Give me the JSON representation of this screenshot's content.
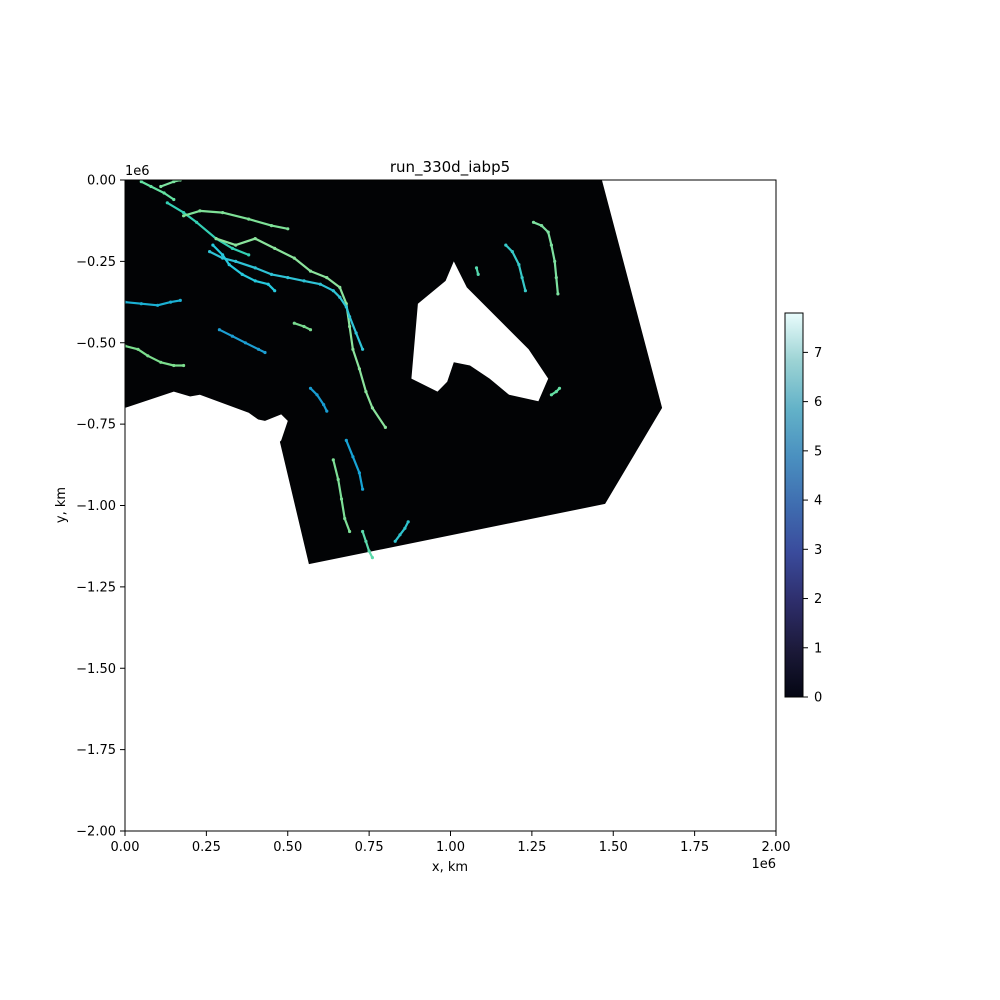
{
  "chart_data": {
    "type": "scatter",
    "title": "run_330d_iabp5",
    "xlabel": "x, km",
    "ylabel": "y, km",
    "x_offset_label": "1e6",
    "y_offset_label": "1e6",
    "xlim": [
      0.0,
      2000000.0
    ],
    "ylim": [
      -2000000.0,
      0.0
    ],
    "x_ticks": [
      0.0,
      250000.0,
      500000.0,
      750000.0,
      1000000.0,
      1250000.0,
      1500000.0,
      1750000.0,
      2000000.0
    ],
    "x_tick_labels": [
      "0.00",
      "0.25",
      "0.50",
      "0.75",
      "1.00",
      "1.25",
      "1.50",
      "1.75",
      "2.00"
    ],
    "y_ticks": [
      0.0,
      -250000.0,
      -500000.0,
      -750000.0,
      -1000000.0,
      -1250000.0,
      -1500000.0,
      -1750000.0,
      -2000000.0
    ],
    "y_tick_labels": [
      "0.00",
      "−0.25",
      "−0.50",
      "−0.75",
      "−1.00",
      "−1.25",
      "−1.50",
      "−1.75",
      "−2.00"
    ],
    "grid": false,
    "colormap": "ice",
    "colorbar": {
      "range": [
        0,
        7.8
      ],
      "ticks": [
        0,
        1,
        2,
        3,
        4,
        5,
        6,
        7
      ],
      "tick_labels": [
        "0",
        "1",
        "2",
        "3",
        "4",
        "5",
        "6",
        "7"
      ],
      "colors": [
        "#040613",
        "#1c1a3a",
        "#2e2e6c",
        "#3a4b9c",
        "#3f6db0",
        "#4a90c0",
        "#63b2c8",
        "#9cd3d4",
        "#e9fcfc"
      ]
    },
    "mesh_domain": {
      "fill": "#020305",
      "boundary": [
        [
          0,
          0
        ],
        [
          1465000,
          0
        ],
        [
          1650000,
          -700000
        ],
        [
          1475000,
          -995000
        ],
        [
          565000,
          -1180000
        ],
        [
          470000,
          -780000
        ],
        [
          380000,
          -715000
        ],
        [
          230000,
          -660000
        ],
        [
          0,
          -700000
        ]
      ]
    },
    "land_masks": [
      {
        "fill": "#ffffff",
        "outline": [
          [
            900000,
            -380000
          ],
          [
            985000,
            -310000
          ],
          [
            1010000,
            -250000
          ],
          [
            1050000,
            -330000
          ],
          [
            1180000,
            -460000
          ],
          [
            1240000,
            -520000
          ],
          [
            1300000,
            -610000
          ],
          [
            1270000,
            -680000
          ],
          [
            1180000,
            -660000
          ],
          [
            1120000,
            -610000
          ],
          [
            1060000,
            -570000
          ],
          [
            1010000,
            -560000
          ],
          [
            990000,
            -620000
          ],
          [
            960000,
            -650000
          ],
          [
            880000,
            -610000
          ]
        ]
      },
      {
        "fill": "#ffffff",
        "outline": [
          [
            0,
            -700000
          ],
          [
            150000,
            -650000
          ],
          [
            250000,
            -680000
          ],
          [
            310000,
            -740000
          ],
          [
            350000,
            -760000
          ],
          [
            380000,
            -730000
          ],
          [
            430000,
            -740000
          ],
          [
            480000,
            -720000
          ],
          [
            500000,
            -740000
          ],
          [
            480000,
            -800000
          ],
          [
            450000,
            -830000
          ],
          [
            440000,
            -880000
          ],
          [
            450000,
            -950000
          ],
          [
            470000,
            -1000000
          ],
          [
            480000,
            -1060000
          ],
          [
            520000,
            -1110000
          ],
          [
            560000,
            -1180000
          ],
          [
            0,
            -1180000
          ]
        ]
      }
    ],
    "series": [
      {
        "color": "#64e3a2",
        "points": [
          [
            50000,
            -5000
          ],
          [
            80000,
            -20000
          ],
          [
            120000,
            -40000
          ],
          [
            150000,
            -60000
          ]
        ]
      },
      {
        "color": "#7de4a0",
        "points": [
          [
            110000,
            -20000
          ],
          [
            150000,
            -5000
          ],
          [
            170000,
            0
          ]
        ]
      },
      {
        "color": "#34d0b4",
        "points": [
          [
            130000,
            -70000
          ],
          [
            180000,
            -100000
          ],
          [
            220000,
            -130000
          ],
          [
            280000,
            -180000
          ],
          [
            330000,
            -210000
          ],
          [
            380000,
            -230000
          ]
        ]
      },
      {
        "color": "#7ee197",
        "points": [
          [
            180000,
            -110000
          ],
          [
            230000,
            -95000
          ],
          [
            300000,
            -100000
          ],
          [
            380000,
            -120000
          ],
          [
            450000,
            -140000
          ],
          [
            500000,
            -150000
          ]
        ]
      },
      {
        "color": "#8be39c",
        "points": [
          [
            280000,
            -180000
          ],
          [
            340000,
            -200000
          ],
          [
            400000,
            -180000
          ],
          [
            460000,
            -210000
          ],
          [
            520000,
            -240000
          ],
          [
            570000,
            -280000
          ],
          [
            620000,
            -300000
          ],
          [
            660000,
            -330000
          ],
          [
            680000,
            -380000
          ],
          [
            690000,
            -450000
          ],
          [
            700000,
            -520000
          ],
          [
            720000,
            -580000
          ],
          [
            740000,
            -650000
          ],
          [
            760000,
            -700000
          ],
          [
            800000,
            -760000
          ]
        ]
      },
      {
        "color": "#2fc3d6",
        "points": [
          [
            260000,
            -220000
          ],
          [
            300000,
            -240000
          ],
          [
            340000,
            -250000
          ],
          [
            400000,
            -270000
          ],
          [
            450000,
            -290000
          ],
          [
            500000,
            -300000
          ],
          [
            550000,
            -310000
          ],
          [
            600000,
            -320000
          ],
          [
            640000,
            -340000
          ],
          [
            660000,
            -360000
          ],
          [
            680000,
            -390000
          ],
          [
            690000,
            -420000
          ],
          [
            710000,
            -470000
          ],
          [
            730000,
            -520000
          ]
        ]
      },
      {
        "color": "#26c9de",
        "points": [
          [
            270000,
            -200000
          ],
          [
            300000,
            -230000
          ],
          [
            320000,
            -260000
          ],
          [
            360000,
            -290000
          ],
          [
            400000,
            -310000
          ],
          [
            440000,
            -320000
          ],
          [
            460000,
            -340000
          ]
        ]
      },
      {
        "color": "#1bb0d3",
        "points": [
          [
            0,
            -375000
          ],
          [
            50000,
            -380000
          ],
          [
            100000,
            -385000
          ],
          [
            140000,
            -375000
          ],
          [
            170000,
            -370000
          ]
        ]
      },
      {
        "color": "#7cde8e",
        "points": [
          [
            0,
            -510000
          ],
          [
            40000,
            -520000
          ],
          [
            70000,
            -540000
          ],
          [
            110000,
            -560000
          ],
          [
            150000,
            -570000
          ],
          [
            180000,
            -570000
          ]
        ]
      },
      {
        "color": "#1d9ed2",
        "points": [
          [
            290000,
            -460000
          ],
          [
            330000,
            -480000
          ],
          [
            370000,
            -500000
          ],
          [
            410000,
            -520000
          ],
          [
            430000,
            -530000
          ]
        ]
      },
      {
        "color": "#79d98f",
        "points": [
          [
            520000,
            -440000
          ],
          [
            550000,
            -450000
          ],
          [
            570000,
            -460000
          ]
        ]
      },
      {
        "color": "#189cd2",
        "points": [
          [
            570000,
            -640000
          ],
          [
            590000,
            -660000
          ],
          [
            610000,
            -690000
          ],
          [
            620000,
            -710000
          ]
        ]
      },
      {
        "color": "#17a3d5",
        "points": [
          [
            680000,
            -800000
          ],
          [
            700000,
            -850000
          ],
          [
            720000,
            -900000
          ],
          [
            730000,
            -950000
          ]
        ]
      },
      {
        "color": "#7edf97",
        "points": [
          [
            640000,
            -860000
          ],
          [
            655000,
            -920000
          ],
          [
            665000,
            -980000
          ],
          [
            675000,
            -1040000
          ],
          [
            690000,
            -1080000
          ]
        ]
      },
      {
        "color": "#5ad9ab",
        "points": [
          [
            730000,
            -1080000
          ],
          [
            740000,
            -1110000
          ],
          [
            750000,
            -1140000
          ],
          [
            760000,
            -1160000
          ]
        ]
      },
      {
        "color": "#2fc4cf",
        "points": [
          [
            830000,
            -1110000
          ],
          [
            845000,
            -1090000
          ],
          [
            860000,
            -1070000
          ],
          [
            870000,
            -1050000
          ]
        ]
      },
      {
        "color": "#37c9c8",
        "points": [
          [
            1170000,
            -200000
          ],
          [
            1190000,
            -220000
          ],
          [
            1210000,
            -260000
          ],
          [
            1220000,
            -300000
          ],
          [
            1230000,
            -340000
          ]
        ]
      },
      {
        "color": "#7de09f",
        "points": [
          [
            1255000,
            -130000
          ],
          [
            1280000,
            -140000
          ],
          [
            1300000,
            -160000
          ],
          [
            1310000,
            -200000
          ],
          [
            1320000,
            -250000
          ],
          [
            1325000,
            -300000
          ],
          [
            1330000,
            -350000
          ]
        ]
      },
      {
        "color": "#55d8ae",
        "points": [
          [
            1080000,
            -270000
          ],
          [
            1085000,
            -290000
          ]
        ]
      },
      {
        "color": "#65e0a4",
        "points": [
          [
            1310000,
            -660000
          ],
          [
            1325000,
            -650000
          ],
          [
            1335000,
            -640000
          ]
        ]
      }
    ]
  }
}
